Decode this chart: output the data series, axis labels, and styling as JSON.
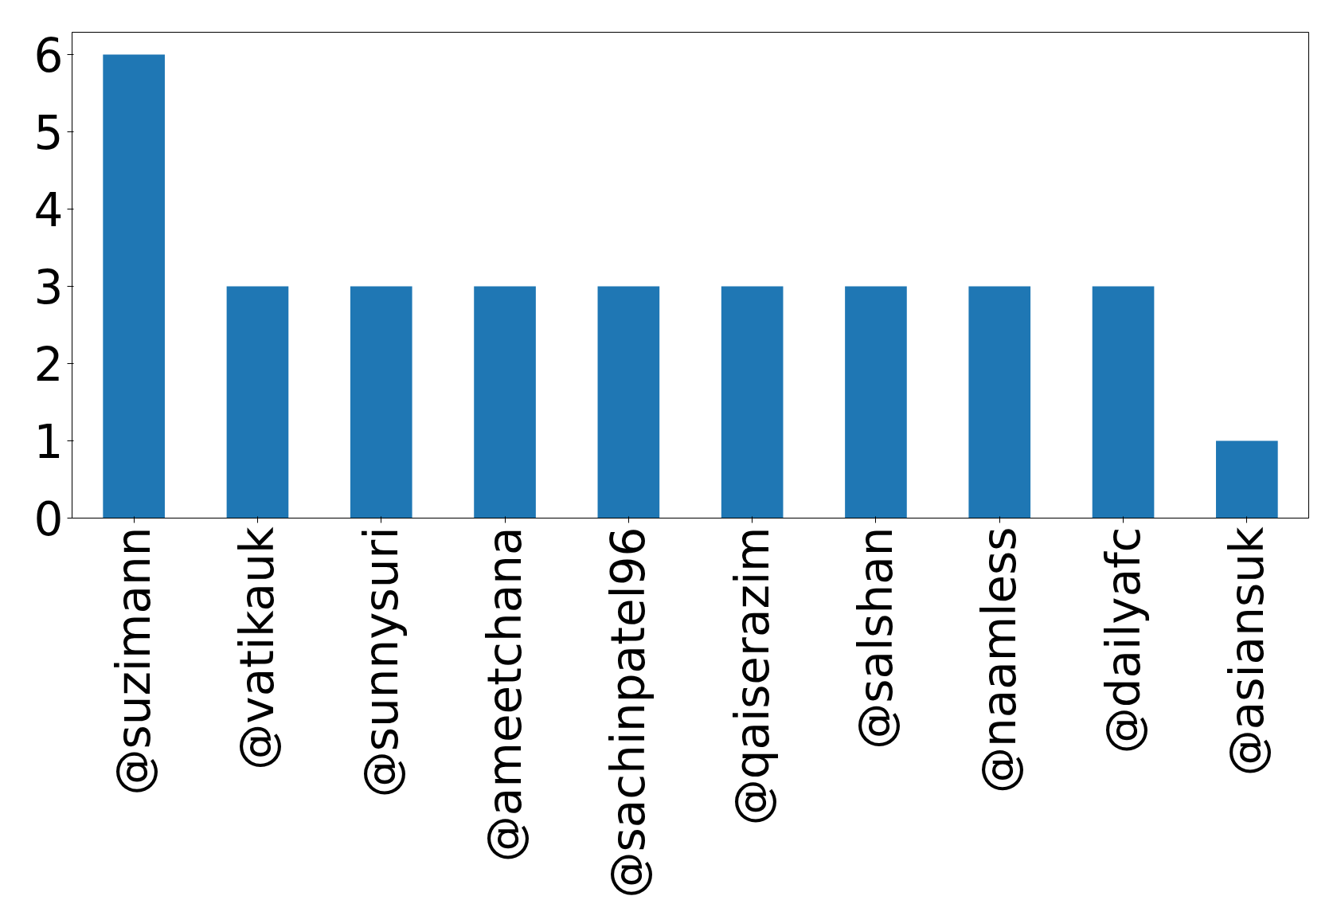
{
  "chart_data": {
    "type": "bar",
    "categories": [
      "@suzimann",
      "@vatikauk",
      "@sunnysuri",
      "@ameetchana",
      "@sachinpatel96",
      "@qaiserazim",
      "@salshan",
      "@naamless",
      "@dailyafc",
      "@asiansuk"
    ],
    "values": [
      6,
      3,
      3,
      3,
      3,
      3,
      3,
      3,
      3,
      1
    ],
    "color": "#1f77b4",
    "ylim": [
      0,
      6.29
    ],
    "yticks": [
      0,
      1,
      2,
      3,
      4,
      5,
      6
    ],
    "grid": false
  }
}
